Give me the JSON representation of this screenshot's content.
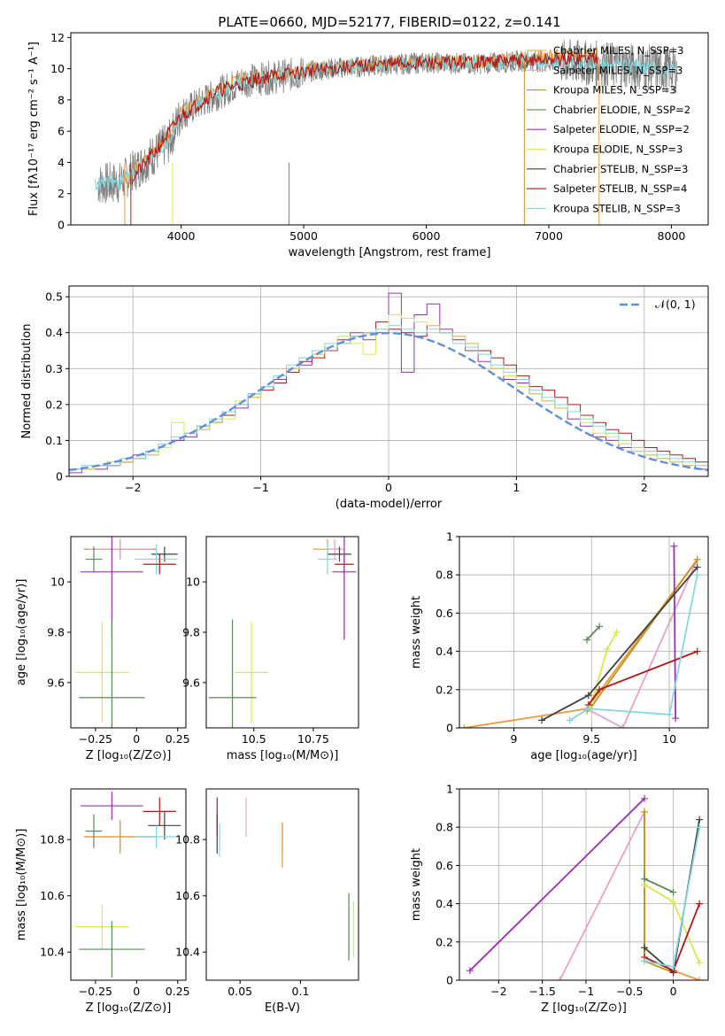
{
  "figure": {
    "title": "PLATE=0660, MJD=52177, FIBERID=0122, z=0.141"
  },
  "colors": {
    "Chabrier MILES": "#e89a3a",
    "Salpeter MILES": "#e8a0c8",
    "Kroupa MILES": "#c8901a",
    "Chabrier ELODIE": "#5a8a5a",
    "Salpeter ELODIE": "#9a30b0",
    "Kroupa ELODIE": "#d8e850",
    "Chabrier STELIB": "#404040",
    "Salpeter STELIB": "#b01818",
    "Kroupa STELIB": "#80d8e0",
    "data": "#808080",
    "gauss": "#6090d8"
  },
  "chart_data": [
    {
      "id": "spectrum",
      "type": "line",
      "xlabel": "wavelength [Angstrom, rest frame]",
      "ylabel": "Flux [fλ10⁻¹⁷ erg cm⁻² s⁻¹ A⁻¹]",
      "xlim": [
        3100,
        8300
      ],
      "ylim": [
        0,
        12.3
      ],
      "xticks": [
        4000,
        5000,
        6000,
        7000,
        8000
      ],
      "yticks": [
        0,
        2,
        4,
        6,
        8,
        10,
        12
      ],
      "legend_position": "right",
      "legend": [
        "Chabrier MILES, N_SSP=3",
        "Salpeter MILES, N_SSP=3",
        "Kroupa MILES, N_SSP=3",
        "Chabrier ELODIE, N_SSP=2",
        "Salpeter ELODIE, N_SSP=2",
        "Kroupa ELODIE, N_SSP=3",
        "Chabrier STELIB, N_SSP=3",
        "Salpeter STELIB, N_SSP=4",
        "Kroupa STELIB, N_SSP=3"
      ],
      "series": [
        {
          "name": "Chabrier MILES, N_SSP=3",
          "x": [
            3540,
            3700,
            3900,
            4000,
            4200,
            4500,
            4800,
            5200,
            5600,
            6000,
            6400,
            6800,
            7100,
            7400
          ],
          "y": [
            2.7,
            4.2,
            5.5,
            7.3,
            8.2,
            9.4,
            9.6,
            10.1,
            10.3,
            10.5,
            10.4,
            10.6,
            10.9,
            11.0
          ]
        },
        {
          "name": "Kroupa STELIB, N_SSP=3",
          "x": [
            3300,
            3500,
            3700,
            3900,
            4000,
            4200,
            4500,
            4800,
            5200,
            5600,
            6000,
            6400,
            6800,
            7200,
            7600,
            8050
          ],
          "y": [
            2.6,
            2.7,
            4.0,
            5.3,
            7.1,
            8.0,
            9.2,
            9.5,
            10.0,
            10.2,
            10.4,
            10.3,
            10.5,
            10.4,
            10.2,
            9.9
          ]
        },
        {
          "name": "Salpeter STELIB, N_SSP=4",
          "x": [
            3600,
            3800,
            4000,
            4300,
            4700,
            5200,
            5700,
            6200,
            6700,
            7100,
            7400
          ],
          "y": [
            3.0,
            4.8,
            7.0,
            8.6,
            9.5,
            10.0,
            10.3,
            10.4,
            10.5,
            10.6,
            10.7
          ]
        }
      ]
    },
    {
      "id": "residuals",
      "type": "bar",
      "xlabel": "(data-model)/error",
      "ylabel": "Normed distribution",
      "xlim": [
        -2.5,
        2.5
      ],
      "ylim": [
        0,
        0.53
      ],
      "xticks": [
        -2,
        -1,
        0,
        1,
        2
      ],
      "yticks": [
        0.0,
        0.1,
        0.2,
        0.3,
        0.4,
        0.5
      ],
      "grid": true,
      "legend_position": "top-right",
      "legend": [
        "𝒩(0, 1)"
      ],
      "bin_width": 0.1,
      "bin_start": -2.5,
      "series": [
        {
          "name": "Salpeter STELIB",
          "values": [
            0.02,
            0.02,
            0.03,
            0.03,
            0.04,
            0.05,
            0.07,
            0.09,
            0.1,
            0.12,
            0.14,
            0.15,
            0.17,
            0.2,
            0.22,
            0.24,
            0.26,
            0.29,
            0.32,
            0.33,
            0.36,
            0.38,
            0.39,
            0.4,
            0.43,
            0.41,
            0.4,
            0.39,
            0.42,
            0.4,
            0.38,
            0.37,
            0.35,
            0.33,
            0.31,
            0.28,
            0.25,
            0.24,
            0.22,
            0.2,
            0.17,
            0.15,
            0.13,
            0.12,
            0.1,
            0.08,
            0.07,
            0.06,
            0.05,
            0.04
          ]
        },
        {
          "name": "Salpeter ELODIE",
          "values": [
            0.01,
            0.02,
            0.02,
            0.03,
            0.04,
            0.06,
            0.06,
            0.08,
            0.1,
            0.11,
            0.13,
            0.15,
            0.18,
            0.19,
            0.23,
            0.25,
            0.27,
            0.3,
            0.31,
            0.34,
            0.35,
            0.37,
            0.4,
            0.38,
            0.4,
            0.51,
            0.29,
            0.45,
            0.48,
            0.41,
            0.39,
            0.35,
            0.32,
            0.3,
            0.27,
            0.26,
            0.23,
            0.21,
            0.19,
            0.16,
            0.14,
            0.11,
            0.1,
            0.08,
            0.07,
            0.06,
            0.05,
            0.04,
            0.03,
            0.02
          ]
        },
        {
          "name": "Kroupa ELODIE",
          "values": [
            0.02,
            0.02,
            0.03,
            0.04,
            0.04,
            0.05,
            0.06,
            0.08,
            0.15,
            0.12,
            0.13,
            0.15,
            0.16,
            0.21,
            0.22,
            0.25,
            0.28,
            0.3,
            0.33,
            0.34,
            0.36,
            0.39,
            0.37,
            0.34,
            0.41,
            0.45,
            0.44,
            0.43,
            0.42,
            0.4,
            0.39,
            0.37,
            0.34,
            0.3,
            0.28,
            0.25,
            0.23,
            0.21,
            0.19,
            0.18,
            0.15,
            0.12,
            0.11,
            0.09,
            0.07,
            0.06,
            0.05,
            0.04,
            0.03,
            0.03
          ]
        },
        {
          "name": "Kroupa STELIB",
          "values": [
            0.02,
            0.03,
            0.03,
            0.03,
            0.05,
            0.05,
            0.07,
            0.09,
            0.11,
            0.12,
            0.14,
            0.16,
            0.18,
            0.2,
            0.23,
            0.25,
            0.28,
            0.31,
            0.33,
            0.35,
            0.37,
            0.37,
            0.39,
            0.4,
            0.41,
            0.42,
            0.41,
            0.4,
            0.41,
            0.4,
            0.37,
            0.36,
            0.34,
            0.31,
            0.29,
            0.27,
            0.24,
            0.22,
            0.2,
            0.18,
            0.16,
            0.14,
            0.12,
            0.1,
            0.08,
            0.07,
            0.06,
            0.05,
            0.04,
            0.03
          ]
        }
      ],
      "gaussian": {
        "name": "𝒩(0, 1)",
        "mean": 0,
        "sigma": 1
      }
    },
    {
      "id": "age-vs-Z",
      "type": "scatter",
      "xlabel": "Z [log₁₀(Z/Z⊙)]",
      "ylabel": "age  [log₁₀(age/yr)]",
      "xlim": [
        -0.4,
        0.3
      ],
      "ylim": [
        9.42,
        10.18
      ],
      "xticks": [
        -0.25,
        0.0,
        0.25
      ],
      "yticks": [
        9.6,
        9.8,
        10.0
      ],
      "points": [
        {
          "name": "Chabrier MILES",
          "x": -0.1,
          "y": 10.13,
          "xerr": 0.22,
          "yerr": 0.04
        },
        {
          "name": "Kroupa MILES",
          "x": -0.1,
          "y": 10.13,
          "xerr": 0.22,
          "yerr": 0.03
        },
        {
          "name": "Salpeter MILES",
          "x": -0.1,
          "y": 10.13,
          "xerr": 0.2,
          "yerr": 0.04
        },
        {
          "name": "Chabrier STELIB",
          "x": 0.17,
          "y": 10.11,
          "xerr": 0.08,
          "yerr": 0.03
        },
        {
          "name": "Kroupa STELIB",
          "x": 0.12,
          "y": 10.09,
          "xerr": 0.13,
          "yerr": 0.06
        },
        {
          "name": "Chabrier ELODIE",
          "x": -0.26,
          "y": 10.09,
          "xerr": 0.05,
          "yerr": 0.05
        },
        {
          "name": "Salpeter STELIB",
          "x": 0.14,
          "y": 10.07,
          "xerr": 0.1,
          "yerr": 0.04
        },
        {
          "name": "Salpeter ELODIE",
          "x": -0.15,
          "y": 10.04,
          "xerr": 0.19,
          "yerr": 0.27
        },
        {
          "name": "Kroupa ELODIE",
          "x": -0.21,
          "y": 9.64,
          "xerr": 0.16,
          "yerr": 0.2
        },
        {
          "name": "Chabrier ELODIE",
          "x": -0.15,
          "y": 9.54,
          "xerr": 0.2,
          "yerr": 0.31
        }
      ]
    },
    {
      "id": "age-vs-mass",
      "type": "scatter",
      "xlabel": "mass [log₁₀(M/M⊙)]",
      "ylabel": "",
      "xlim": [
        10.3,
        10.94
      ],
      "ylim": [
        9.42,
        10.18
      ],
      "xticks": [
        10.5,
        10.75
      ],
      "yticks": [
        9.6,
        9.8,
        10.0
      ],
      "points": [
        {
          "name": "Chabrier MILES",
          "x": 10.81,
          "y": 10.13,
          "xerr": 0.06,
          "yerr": 0.04
        },
        {
          "name": "Salpeter MILES",
          "x": 10.84,
          "y": 10.13,
          "xerr": 0.04,
          "yerr": 0.04
        },
        {
          "name": "Chabrier STELIB",
          "x": 10.86,
          "y": 10.11,
          "xerr": 0.05,
          "yerr": 0.03
        },
        {
          "name": "Kroupa STELIB",
          "x": 10.81,
          "y": 10.09,
          "xerr": 0.04,
          "yerr": 0.06
        },
        {
          "name": "Salpeter STELIB",
          "x": 10.88,
          "y": 10.07,
          "xerr": 0.04,
          "yerr": 0.04
        },
        {
          "name": "Salpeter ELODIE",
          "x": 10.88,
          "y": 10.04,
          "xerr": 0.05,
          "yerr": 0.27
        },
        {
          "name": "Kroupa ELODIE",
          "x": 10.49,
          "y": 9.64,
          "xerr": 0.07,
          "yerr": 0.2
        },
        {
          "name": "Chabrier ELODIE",
          "x": 10.41,
          "y": 9.54,
          "xerr": 0.1,
          "yerr": 0.31
        }
      ]
    },
    {
      "id": "mass-weight-vs-age",
      "type": "line",
      "xlabel": "age  [log₁₀(age/yr)]",
      "ylabel": "mass weight",
      "xlim": [
        8.65,
        10.25
      ],
      "ylim": [
        0,
        1
      ],
      "xticks": [
        9.0,
        9.5,
        10.0
      ],
      "yticks": [
        0.0,
        0.2,
        0.4,
        0.6,
        0.8,
        1.0
      ],
      "grid": true,
      "series": [
        {
          "name": "Chabrier MILES",
          "x": [
            8.68,
            9.47,
            10.18
          ],
          "y": [
            0.0,
            0.1,
            0.88
          ]
        },
        {
          "name": "Salpeter MILES",
          "x": [
            9.47,
            9.7,
            10.18
          ],
          "y": [
            0.1,
            0.0,
            0.88
          ]
        },
        {
          "name": "Kroupa MILES",
          "x": [
            9.47,
            9.49,
            10.18
          ],
          "y": [
            0.09,
            0.1,
            0.88
          ]
        },
        {
          "name": "Chabrier ELODIE",
          "x": [
            9.47,
            9.55
          ],
          "y": [
            0.46,
            0.53
          ]
        },
        {
          "name": "Salpeter ELODIE",
          "x": [
            10.03,
            10.04
          ],
          "y": [
            0.95,
            0.05
          ]
        },
        {
          "name": "Kroupa ELODIE",
          "x": [
            9.49,
            9.6,
            9.66
          ],
          "y": [
            0.1,
            0.41,
            0.5
          ]
        },
        {
          "name": "Chabrier STELIB",
          "x": [
            9.18,
            9.48,
            10.18
          ],
          "y": [
            0.04,
            0.17,
            0.84
          ]
        },
        {
          "name": "Salpeter STELIB",
          "x": [
            9.48,
            9.55,
            10.18
          ],
          "y": [
            0.12,
            0.2,
            0.4
          ]
        },
        {
          "name": "Kroupa STELIB",
          "x": [
            9.36,
            9.48,
            10.0,
            10.18
          ],
          "y": [
            0.04,
            0.1,
            0.07,
            0.8
          ]
        }
      ]
    },
    {
      "id": "mass-vs-Z",
      "type": "scatter",
      "xlabel": "Z [log₁₀(Z/Z⊙)]",
      "ylabel": "mass [log₁₀(M/M⊙)]",
      "xlim": [
        -0.4,
        0.3
      ],
      "ylim": [
        10.3,
        10.98
      ],
      "xticks": [
        -0.25,
        0.0,
        0.25
      ],
      "yticks": [
        10.4,
        10.6,
        10.8
      ],
      "points": [
        {
          "name": "Salpeter ELODIE",
          "x": -0.15,
          "y": 10.92,
          "xerr": 0.19,
          "yerr": 0.05
        },
        {
          "name": "Salpeter STELIB",
          "x": 0.14,
          "y": 10.9,
          "xerr": 0.1,
          "yerr": 0.05
        },
        {
          "name": "Chabrier STELIB",
          "x": 0.17,
          "y": 10.85,
          "xerr": 0.1,
          "yerr": 0.05
        },
        {
          "name": "Kroupa MILES",
          "x": -0.1,
          "y": 10.81,
          "xerr": 0.22,
          "yerr": 0.05
        },
        {
          "name": "Chabrier MILES",
          "x": -0.1,
          "y": 10.81,
          "xerr": 0.22,
          "yerr": 0.06
        },
        {
          "name": "Kroupa STELIB",
          "x": 0.12,
          "y": 10.81,
          "xerr": 0.13,
          "yerr": 0.04
        },
        {
          "name": "Chabrier ELODIE",
          "x": -0.26,
          "y": 10.83,
          "xerr": 0.05,
          "yerr": 0.06
        },
        {
          "name": "Kroupa ELODIE",
          "x": -0.21,
          "y": 10.49,
          "xerr": 0.16,
          "yerr": 0.08
        },
        {
          "name": "Chabrier ELODIE",
          "x": -0.15,
          "y": 10.41,
          "xerr": 0.2,
          "yerr": 0.1
        }
      ]
    },
    {
      "id": "mass-vs-EBV",
      "type": "scatter",
      "xlabel": "E(B-V)",
      "ylabel": "",
      "xlim": [
        0.022,
        0.148
      ],
      "ylim": [
        10.3,
        10.98
      ],
      "xticks": [
        0.05,
        0.1
      ],
      "yticks": [
        10.4,
        10.6,
        10.8
      ],
      "points": [
        {
          "name": "Salpeter STELIB",
          "x": 0.031,
          "y": 10.88,
          "xerr": 0.0,
          "yerr": 0.07
        },
        {
          "name": "Chabrier STELIB",
          "x": 0.031,
          "y": 10.82,
          "xerr": 0.0,
          "yerr": 0.07
        },
        {
          "name": "Kroupa STELIB",
          "x": 0.033,
          "y": 10.8,
          "xerr": 0.0,
          "yerr": 0.06
        },
        {
          "name": "Salpeter MILES",
          "x": 0.055,
          "y": 10.88,
          "xerr": 0.0,
          "yerr": 0.07
        },
        {
          "name": "Kroupa MILES",
          "x": 0.085,
          "y": 10.81,
          "xerr": 0.0,
          "yerr": 0.05
        },
        {
          "name": "Chabrier MILES",
          "x": 0.085,
          "y": 10.78,
          "xerr": 0.0,
          "yerr": 0.08
        },
        {
          "name": "Chabrier ELODIE",
          "x": 0.14,
          "y": 10.49,
          "xerr": 0.0,
          "yerr": 0.12
        },
        {
          "name": "Kroupa ELODIE",
          "x": 0.144,
          "y": 10.48,
          "xerr": 0.0,
          "yerr": 0.1
        }
      ]
    },
    {
      "id": "mass-weight-vs-Z",
      "type": "line",
      "xlabel": "Z [log₁₀(Z/Z⊙)]",
      "ylabel": "mass weight",
      "xlim": [
        -2.45,
        0.4
      ],
      "ylim": [
        0,
        1
      ],
      "xticks": [
        -2.0,
        -1.5,
        -1.0,
        -0.5,
        0.0
      ],
      "yticks": [
        0.0,
        0.2,
        0.4,
        0.6,
        0.8,
        1.0
      ],
      "grid": true,
      "series": [
        {
          "name": "Salpeter ELODIE",
          "x": [
            -2.33,
            -0.33
          ],
          "y": [
            0.05,
            0.95
          ]
        },
        {
          "name": "Salpeter MILES",
          "x": [
            -1.3,
            -0.33,
            -0.33
          ],
          "y": [
            0.0,
            0.88,
            0.1
          ]
        },
        {
          "name": "Chabrier MILES",
          "x": [
            -0.33,
            -0.33,
            0.0,
            0.3
          ],
          "y": [
            0.88,
            0.12,
            0.05,
            0.0
          ]
        },
        {
          "name": "Kroupa MILES",
          "x": [
            -0.33,
            -0.33,
            0.0
          ],
          "y": [
            0.88,
            0.1,
            0.04
          ]
        },
        {
          "name": "Chabrier ELODIE",
          "x": [
            -0.33,
            0.0
          ],
          "y": [
            0.53,
            0.46
          ]
        },
        {
          "name": "Kroupa ELODIE",
          "x": [
            -0.33,
            0.0,
            0.3
          ],
          "y": [
            0.5,
            0.41,
            0.09
          ]
        },
        {
          "name": "Chabrier STELIB",
          "x": [
            -0.33,
            0.0,
            0.3
          ],
          "y": [
            0.17,
            0.04,
            0.84
          ]
        },
        {
          "name": "Salpeter STELIB",
          "x": [
            -0.33,
            0.0,
            0.3
          ],
          "y": [
            0.12,
            0.05,
            0.4
          ]
        },
        {
          "name": "Kroupa STELIB",
          "x": [
            -0.33,
            0.0,
            0.3
          ],
          "y": [
            0.1,
            0.07,
            0.8
          ]
        }
      ]
    }
  ]
}
